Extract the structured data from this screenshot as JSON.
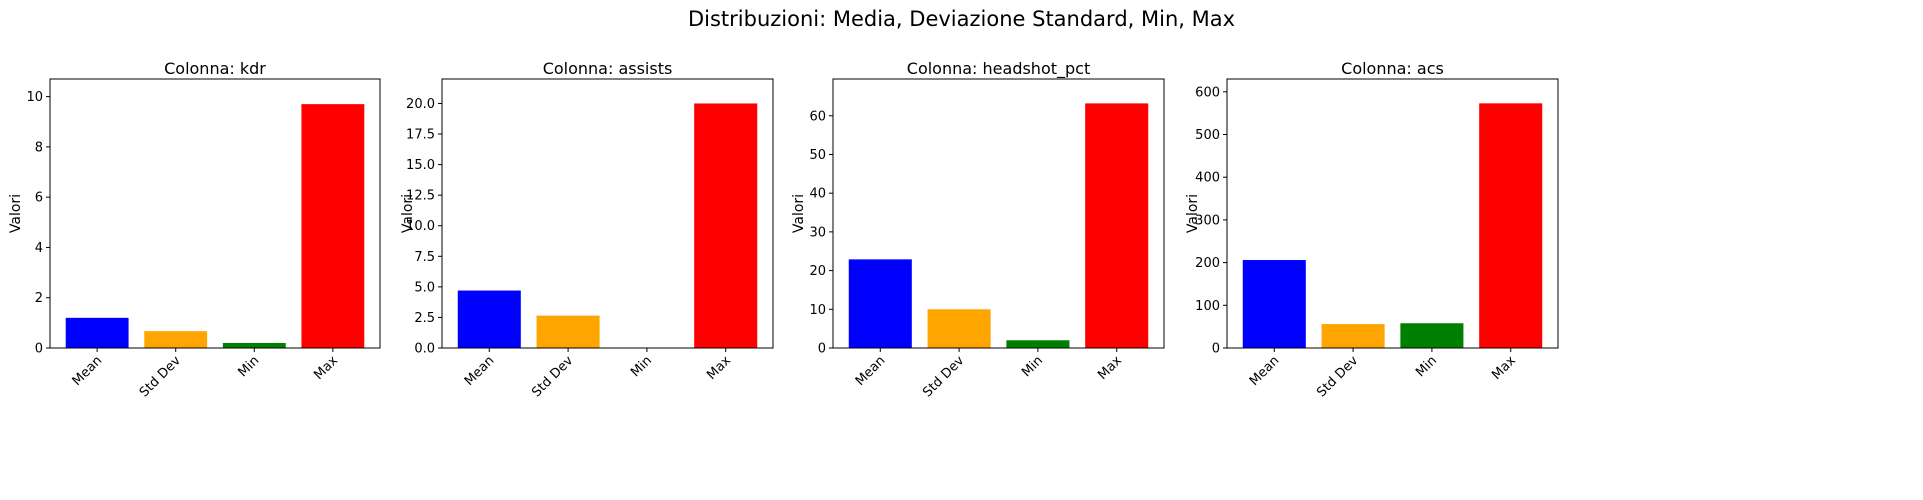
{
  "figure": {
    "suptitle": "Distribuzioni: Media, Deviazione Standard, Min, Max"
  },
  "chart_data": [
    {
      "type": "bar",
      "title": "Colonna: kdr",
      "xlabel": "",
      "ylabel": "Valori",
      "categories": [
        "Mean",
        "Std Dev",
        "Min",
        "Max"
      ],
      "values": [
        1.2,
        0.67,
        0.2,
        9.7
      ],
      "colors": [
        "#0000ff",
        "#ffa500",
        "#008000",
        "#ff0000"
      ],
      "ylim": [
        0,
        10.7
      ],
      "yticks": [
        0,
        2,
        4,
        6,
        8,
        10
      ],
      "ytick_labels": [
        "0",
        "2",
        "4",
        "6",
        "8",
        "10"
      ],
      "grid": false
    },
    {
      "type": "bar",
      "title": "Colonna: assists",
      "xlabel": "",
      "ylabel": "Valori",
      "categories": [
        "Mean",
        "Std Dev",
        "Min",
        "Max"
      ],
      "values": [
        4.7,
        2.65,
        0,
        20.0
      ],
      "colors": [
        "#0000ff",
        "#ffa500",
        "#008000",
        "#ff0000"
      ],
      "ylim": [
        0,
        22.0
      ],
      "yticks": [
        0,
        2.5,
        5,
        7.5,
        10,
        12.5,
        15,
        17.5,
        20
      ],
      "ytick_labels": [
        "0.0",
        "2.5",
        "5.0",
        "7.5",
        "10.0",
        "12.5",
        "15.0",
        "17.5",
        "20.0"
      ],
      "grid": false
    },
    {
      "type": "bar",
      "title": "Colonna: headshot_pct",
      "xlabel": "",
      "ylabel": "Valori",
      "categories": [
        "Mean",
        "Std Dev",
        "Min",
        "Max"
      ],
      "values": [
        22.9,
        10.0,
        2.0,
        63.2
      ],
      "colors": [
        "#0000ff",
        "#ffa500",
        "#008000",
        "#ff0000"
      ],
      "ylim": [
        0,
        69.5
      ],
      "yticks": [
        0,
        10,
        20,
        30,
        40,
        50,
        60
      ],
      "ytick_labels": [
        "0",
        "10",
        "20",
        "30",
        "40",
        "50",
        "60"
      ],
      "grid": false
    },
    {
      "type": "bar",
      "title": "Colonna: acs",
      "xlabel": "",
      "ylabel": "Valori",
      "categories": [
        "Mean",
        "Std Dev",
        "Min",
        "Max"
      ],
      "values": [
        206,
        56,
        58,
        573
      ],
      "colors": [
        "#0000ff",
        "#ffa500",
        "#008000",
        "#ff0000"
      ],
      "ylim": [
        0,
        630
      ],
      "yticks": [
        0,
        100,
        200,
        300,
        400,
        500,
        600
      ],
      "ytick_labels": [
        "0",
        "100",
        "200",
        "300",
        "400",
        "500",
        "600"
      ],
      "grid": false
    }
  ]
}
